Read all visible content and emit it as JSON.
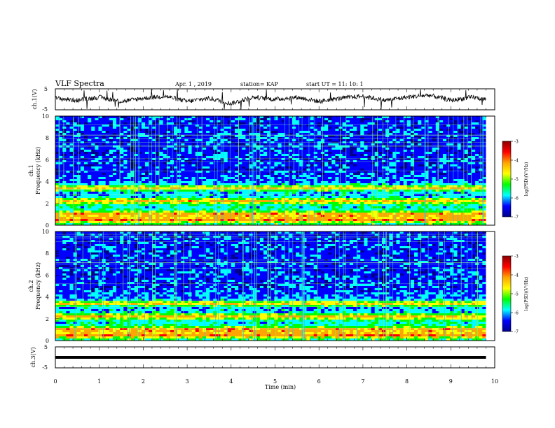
{
  "header": {
    "title": "VLF Spectra",
    "date": "Apr. 1  , 2019",
    "station": "station= KAP",
    "start_ut": "start  UT =   11: 10: 1"
  },
  "colorbar": {
    "label": "log(PSD)(V²/Hz)",
    "ticks": [
      "-3",
      "-4",
      "-5",
      "-6",
      "-7"
    ],
    "stops": [
      "#8b0000",
      "#ff0000",
      "#ffa500",
      "#ffff00",
      "#00ff00",
      "#00ffff",
      "#0000ff",
      "#00008b"
    ]
  },
  "chart_data": [
    {
      "type": "line",
      "ylabel": "ch.1(V)",
      "ylim": [
        -5,
        5
      ],
      "ytick_labels": [
        "5",
        "-5"
      ],
      "xlim": [
        0,
        10
      ],
      "data_end_min": 9.8,
      "x": [
        0,
        0.5,
        1,
        1.5,
        2,
        2.5,
        3,
        3.5,
        4,
        4.5,
        5,
        5.5,
        6,
        6.5,
        7,
        7.5,
        8,
        8.5,
        9,
        9.5,
        9.8
      ],
      "y": [
        0.5,
        -0.5,
        1,
        -1,
        0.5,
        1.5,
        -1,
        0.5,
        -2,
        1,
        0,
        1,
        -1,
        0.5,
        1.5,
        -0.5,
        1,
        2,
        -0.5,
        1,
        0
      ],
      "color": "#000000"
    },
    {
      "type": "heatmap",
      "ylabel": "ch.1",
      "ylabel2": "Frequency  (kHz)",
      "ylim": [
        0,
        10
      ],
      "ytick_labels": [
        "0",
        "2",
        "4",
        "6",
        "8",
        "10"
      ],
      "xlim": [
        0,
        10
      ],
      "data_end_min": 9.8,
      "value_range": [
        -7,
        -3
      ],
      "dominant_bands_khz": [
        0.5,
        1.0,
        2.2,
        3.4
      ]
    },
    {
      "type": "heatmap",
      "ylabel": "ch.2",
      "ylabel2": "Frequency  (kHz)",
      "ylim": [
        0,
        10
      ],
      "ytick_labels": [
        "0",
        "2",
        "4",
        "6",
        "8",
        "10"
      ],
      "xlim": [
        0,
        10
      ],
      "data_end_min": 9.8,
      "value_range": [
        -7,
        -3
      ],
      "dominant_bands_khz": [
        0.5,
        1.0,
        2.2,
        3.4
      ]
    },
    {
      "type": "line",
      "ylabel": "ch.3(V)",
      "ylim": [
        -5,
        5
      ],
      "ytick_labels": [
        "5",
        "-5"
      ],
      "xlim": [
        0,
        10
      ],
      "data_end_min": 9.8,
      "x": [
        0,
        9.8
      ],
      "y": [
        0,
        0
      ],
      "color": "#000000"
    }
  ],
  "xaxis": {
    "label": "Time  (min)",
    "tick_labels": [
      "0",
      "1",
      "2",
      "3",
      "4",
      "5",
      "6",
      "7",
      "8",
      "9",
      "10"
    ]
  }
}
